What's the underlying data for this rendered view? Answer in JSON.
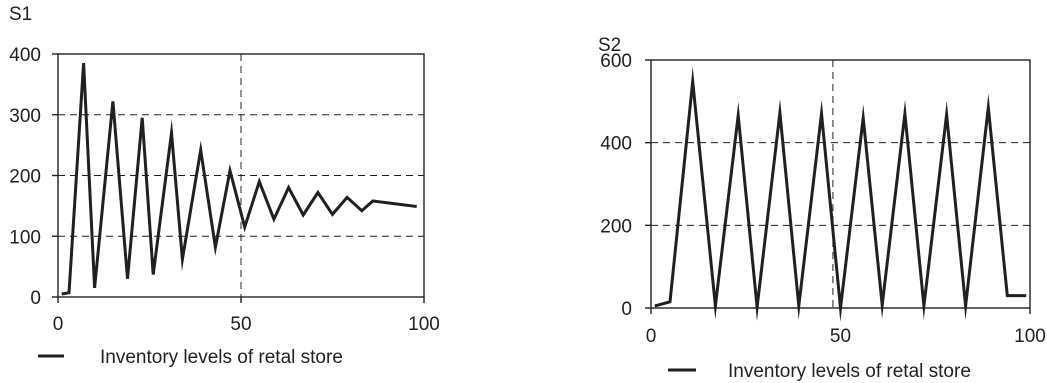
{
  "chart_data": [
    {
      "type": "line",
      "title": "S1",
      "xlabel": "",
      "ylabel": "",
      "xlim": [
        0,
        100
      ],
      "ylim": [
        0,
        400
      ],
      "xticks": [
        0,
        50,
        100
      ],
      "yticks": [
        0,
        100,
        200,
        300,
        400
      ],
      "grid": "dashed at y=100,200,300 and x=50",
      "legend_position": "bottom-left",
      "series": [
        {
          "name": "Inventory levels of retal store",
          "color": "#231f20",
          "x": [
            1,
            3,
            7,
            10,
            15,
            19,
            23,
            26,
            31,
            34,
            39,
            43,
            47,
            51,
            55,
            59,
            63,
            67,
            71,
            75,
            79,
            83,
            86,
            98
          ],
          "y": [
            5,
            7,
            385,
            15,
            322,
            30,
            295,
            37,
            270,
            62,
            242,
            82,
            208,
            115,
            190,
            128,
            180,
            135,
            172,
            136,
            164,
            142,
            158,
            149
          ]
        }
      ]
    },
    {
      "type": "line",
      "title": "S2",
      "xlabel": "",
      "ylabel": "",
      "xlim": [
        0,
        100
      ],
      "ylim": [
        0,
        600
      ],
      "xticks": [
        0,
        50,
        100
      ],
      "yticks": [
        0,
        200,
        400,
        600
      ],
      "grid": "dashed at y=200,400 and x=48",
      "legend_position": "bottom-left",
      "series": [
        {
          "name": "Inventory levels of retal store",
          "color": "#231f20",
          "x": [
            1,
            5,
            11,
            17,
            23,
            28,
            34,
            39,
            45,
            50,
            56,
            61,
            67,
            72,
            78,
            83,
            89,
            94,
            99
          ],
          "y": [
            5,
            15,
            548,
            5,
            466,
            2,
            472,
            5,
            470,
            0,
            460,
            7,
            470,
            5,
            468,
            5,
            485,
            30,
            30
          ]
        }
      ]
    }
  ]
}
